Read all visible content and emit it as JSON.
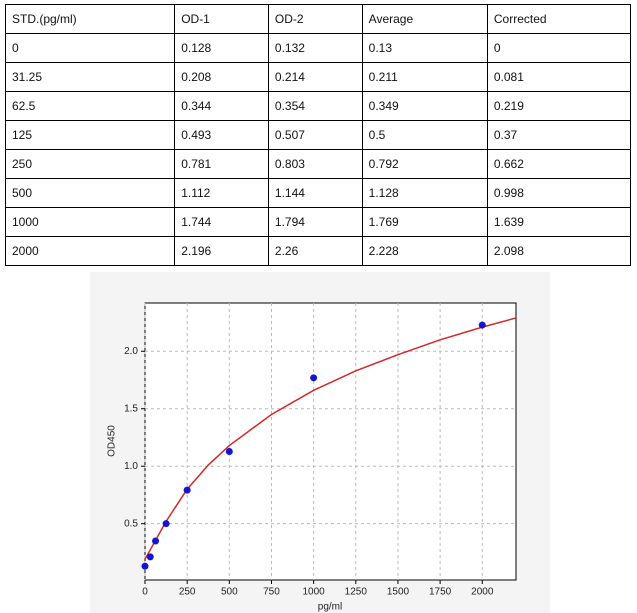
{
  "table": {
    "columns": [
      "STD.(pg/ml)",
      "OD-1",
      "OD-2",
      "Average",
      "Corrected"
    ],
    "rows": [
      [
        "0",
        "0.128",
        "0.132",
        "0.13",
        "0"
      ],
      [
        "31.25",
        "0.208",
        "0.214",
        "0.211",
        "0.081"
      ],
      [
        "62.5",
        "0.344",
        "0.354",
        "0.349",
        "0.219"
      ],
      [
        "125",
        "0.493",
        "0.507",
        "0.5",
        "0.37"
      ],
      [
        "250",
        "0.781",
        "0.803",
        "0.792",
        "0.662"
      ],
      [
        "500",
        "1.112",
        "1.144",
        "1.128",
        "0.998"
      ],
      [
        "1000",
        "1.744",
        "1.794",
        "1.769",
        "1.639"
      ],
      [
        "2000",
        "2.196",
        "2.26",
        "2.228",
        "2.098"
      ]
    ]
  },
  "chart_data": {
    "type": "scatter",
    "x_label": "pg/ml",
    "y_label": "OD450",
    "xlim": [
      0,
      2200
    ],
    "ylim": [
      0.01,
      2.42
    ],
    "xticks": [
      0,
      250,
      500,
      750,
      1000,
      1250,
      1500,
      1750,
      2000
    ],
    "yticks": [
      0.5,
      {
        "value": 1.0,
        "label": "1.0"
      },
      1.5,
      {
        "value": 2.0,
        "label": "2.0"
      }
    ],
    "grid": true,
    "series": [
      {
        "type": "scatter",
        "color": "#1414d2",
        "x": [
          0,
          31.25,
          62.5,
          125,
          250,
          500,
          1000,
          2000
        ],
        "values": [
          0.13,
          0.211,
          0.349,
          0.5,
          0.792,
          1.128,
          1.769,
          2.228
        ]
      },
      {
        "type": "line",
        "color": "#d62728",
        "x": [
          0,
          125,
          250,
          375,
          500,
          750,
          1000,
          1250,
          1500,
          1750,
          2000,
          2200
        ],
        "values": [
          0.19,
          0.52,
          0.8,
          1.01,
          1.18,
          1.45,
          1.66,
          1.83,
          1.97,
          2.1,
          2.21,
          2.29
        ]
      }
    ]
  }
}
